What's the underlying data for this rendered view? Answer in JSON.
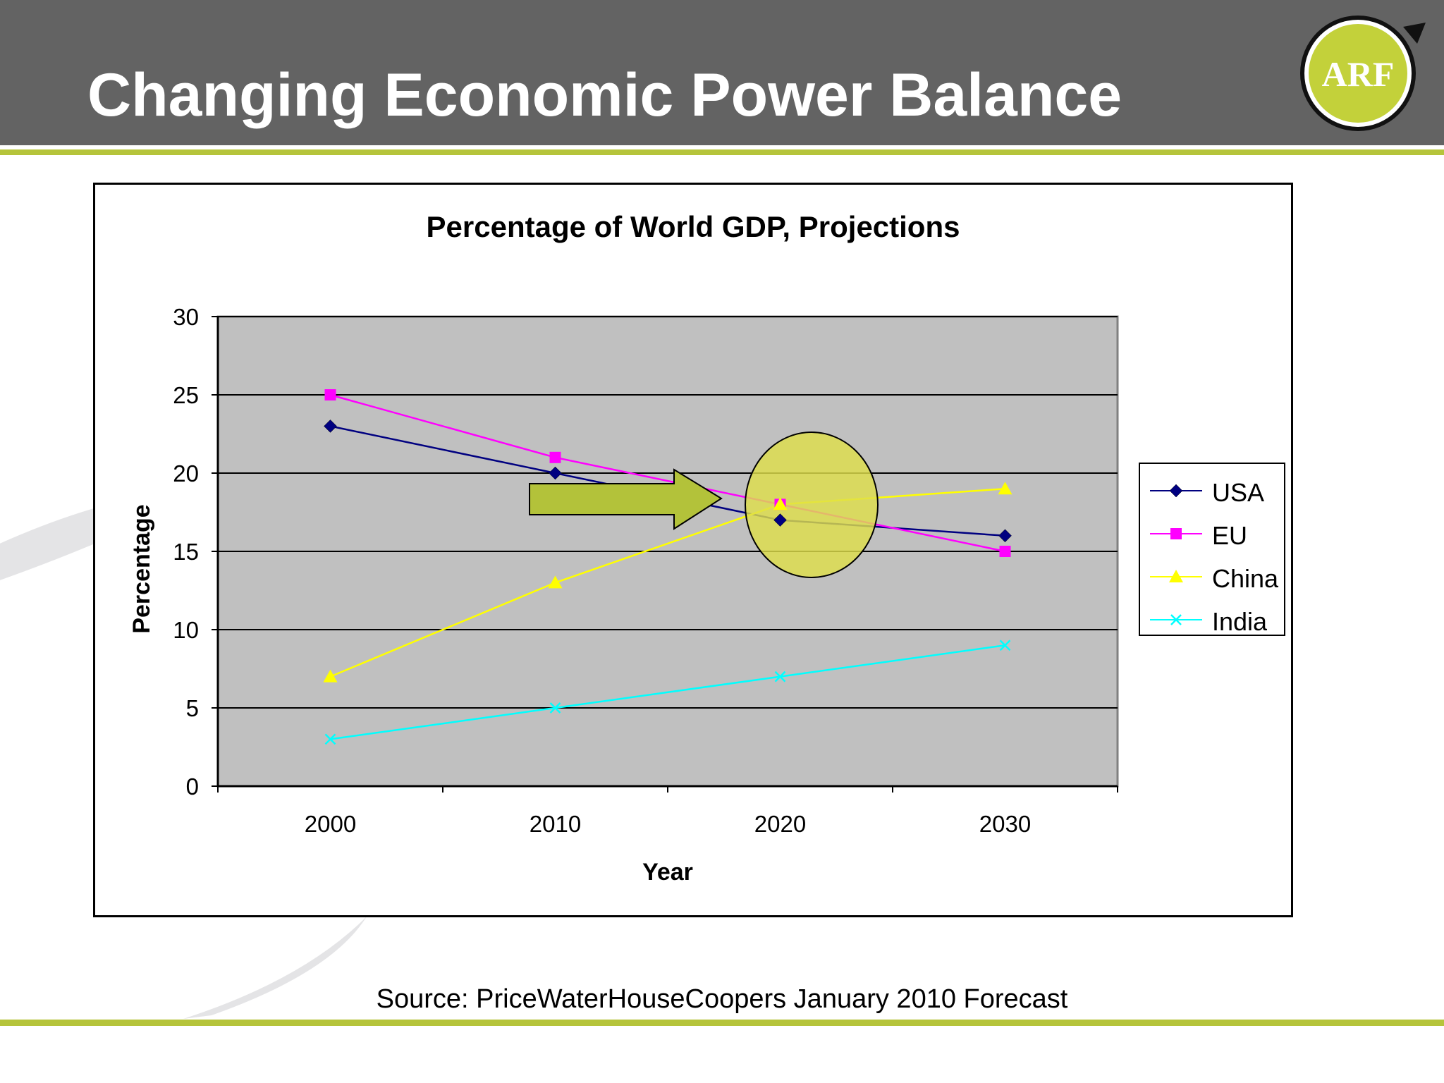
{
  "slide": {
    "title": "Changing Economic Power Balance",
    "logo_text": "ARF",
    "source": "Source: PriceWaterHouseCoopers January 2010 Forecast",
    "colors": {
      "header": "#636363",
      "accent": "#b5c43b",
      "logo_ring": "#c3d13a",
      "highlight": "#dede4b",
      "arrow": "#b3c23a"
    }
  },
  "chart_data": {
    "type": "line",
    "title": "Percentage of World GDP, Projections",
    "xlabel": "Year",
    "ylabel": "Percentage",
    "categories": [
      "2000",
      "2010",
      "2020",
      "2030"
    ],
    "ylim": [
      0,
      30
    ],
    "yticks": [
      "0",
      "5",
      "10",
      "15",
      "20",
      "25",
      "30"
    ],
    "grid": true,
    "legend_position": "right",
    "series": [
      {
        "name": "USA",
        "values": [
          23,
          20,
          17,
          16
        ],
        "color": "#000080",
        "marker": "diamond"
      },
      {
        "name": "EU",
        "values": [
          25,
          21,
          18,
          15
        ],
        "color": "#ff00ff",
        "marker": "square"
      },
      {
        "name": "China",
        "values": [
          7,
          13,
          18,
          19
        ],
        "color": "#ffff00",
        "marker": "triangle"
      },
      {
        "name": "India",
        "values": [
          3,
          5,
          7,
          9
        ],
        "color": "#00ffff",
        "marker": "x"
      }
    ],
    "annotations": [
      {
        "kind": "arrow",
        "description": "right-pointing arrow toward 2020 crossover"
      },
      {
        "kind": "ellipse",
        "description": "highlight around 2020 crossover"
      }
    ]
  }
}
